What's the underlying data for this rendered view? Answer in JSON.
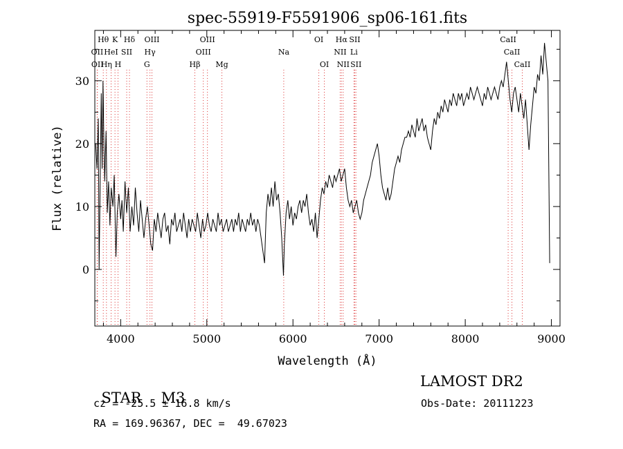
{
  "chart_data": {
    "type": "line",
    "title": "spec-55919-F5591906_sp06-161.fits",
    "xlabel": "Wavelength (Å)",
    "ylabel": "Flux (relative)",
    "xlim": [
      3700,
      9100
    ],
    "ylim": [
      -9,
      38
    ],
    "x_ticks": [
      4000,
      5000,
      6000,
      7000,
      8000,
      9000
    ],
    "y_ticks": [
      0,
      10,
      20,
      30
    ],
    "grid": false,
    "series": [
      {
        "points": [
          [
            3710,
            20
          ],
          [
            3725,
            16
          ],
          [
            3740,
            24
          ],
          [
            3750,
            0
          ],
          [
            3760,
            12
          ],
          [
            3775,
            28
          ],
          [
            3785,
            16
          ],
          [
            3795,
            30
          ],
          [
            3805,
            20
          ],
          [
            3815,
            14
          ],
          [
            3830,
            22
          ],
          [
            3845,
            9
          ],
          [
            3860,
            14
          ],
          [
            3875,
            7
          ],
          [
            3890,
            13
          ],
          [
            3910,
            10
          ],
          [
            3925,
            15
          ],
          [
            3945,
            2
          ],
          [
            3960,
            9
          ],
          [
            3980,
            12
          ],
          [
            4000,
            8
          ],
          [
            4015,
            11
          ],
          [
            4030,
            6
          ],
          [
            4050,
            14
          ],
          [
            4070,
            9
          ],
          [
            4090,
            13
          ],
          [
            4110,
            6
          ],
          [
            4130,
            10
          ],
          [
            4150,
            7
          ],
          [
            4170,
            13
          ],
          [
            4190,
            9
          ],
          [
            4210,
            6
          ],
          [
            4230,
            11
          ],
          [
            4250,
            8
          ],
          [
            4270,
            5
          ],
          [
            4290,
            8
          ],
          [
            4310,
            10
          ],
          [
            4330,
            7
          ],
          [
            4350,
            4
          ],
          [
            4370,
            3
          ],
          [
            4390,
            8
          ],
          [
            4410,
            6
          ],
          [
            4430,
            9
          ],
          [
            4450,
            7
          ],
          [
            4470,
            5
          ],
          [
            4490,
            8
          ],
          [
            4510,
            9
          ],
          [
            4530,
            6
          ],
          [
            4550,
            7
          ],
          [
            4570,
            4
          ],
          [
            4590,
            8
          ],
          [
            4610,
            7
          ],
          [
            4630,
            9
          ],
          [
            4650,
            6
          ],
          [
            4670,
            7
          ],
          [
            4690,
            8
          ],
          [
            4710,
            6
          ],
          [
            4730,
            9
          ],
          [
            4750,
            7
          ],
          [
            4770,
            5
          ],
          [
            4790,
            8
          ],
          [
            4810,
            6
          ],
          [
            4830,
            8
          ],
          [
            4850,
            7
          ],
          [
            4870,
            6
          ],
          [
            4890,
            9
          ],
          [
            4910,
            7
          ],
          [
            4930,
            5
          ],
          [
            4950,
            8
          ],
          [
            4970,
            6
          ],
          [
            4990,
            7
          ],
          [
            5010,
            9
          ],
          [
            5030,
            7
          ],
          [
            5050,
            6
          ],
          [
            5070,
            8
          ],
          [
            5090,
            7
          ],
          [
            5110,
            6
          ],
          [
            5130,
            9
          ],
          [
            5150,
            7
          ],
          [
            5170,
            8
          ],
          [
            5190,
            6
          ],
          [
            5210,
            7
          ],
          [
            5230,
            8
          ],
          [
            5250,
            6
          ],
          [
            5270,
            7
          ],
          [
            5290,
            8
          ],
          [
            5310,
            6
          ],
          [
            5330,
            8
          ],
          [
            5350,
            7
          ],
          [
            5370,
            9
          ],
          [
            5390,
            6
          ],
          [
            5410,
            8
          ],
          [
            5430,
            7
          ],
          [
            5450,
            6
          ],
          [
            5470,
            8
          ],
          [
            5490,
            7
          ],
          [
            5510,
            9
          ],
          [
            5530,
            7
          ],
          [
            5550,
            8
          ],
          [
            5570,
            6
          ],
          [
            5590,
            8
          ],
          [
            5610,
            7
          ],
          [
            5630,
            5
          ],
          [
            5650,
            3
          ],
          [
            5670,
            1
          ],
          [
            5690,
            9
          ],
          [
            5710,
            12
          ],
          [
            5730,
            10
          ],
          [
            5750,
            13
          ],
          [
            5770,
            10
          ],
          [
            5790,
            14
          ],
          [
            5810,
            11
          ],
          [
            5830,
            12
          ],
          [
            5850,
            9
          ],
          [
            5870,
            5
          ],
          [
            5890,
            -1
          ],
          [
            5900,
            4
          ],
          [
            5920,
            9
          ],
          [
            5940,
            11
          ],
          [
            5960,
            8
          ],
          [
            5980,
            10
          ],
          [
            6000,
            7
          ],
          [
            6020,
            9
          ],
          [
            6040,
            8
          ],
          [
            6060,
            10
          ],
          [
            6080,
            11
          ],
          [
            6100,
            9
          ],
          [
            6120,
            11
          ],
          [
            6140,
            10
          ],
          [
            6160,
            12
          ],
          [
            6180,
            9
          ],
          [
            6200,
            7
          ],
          [
            6220,
            8
          ],
          [
            6240,
            6
          ],
          [
            6260,
            9
          ],
          [
            6280,
            5
          ],
          [
            6300,
            8
          ],
          [
            6320,
            11
          ],
          [
            6340,
            13
          ],
          [
            6360,
            12
          ],
          [
            6380,
            14
          ],
          [
            6400,
            13
          ],
          [
            6420,
            15
          ],
          [
            6440,
            14
          ],
          [
            6460,
            13
          ],
          [
            6480,
            15
          ],
          [
            6500,
            14
          ],
          [
            6520,
            15
          ],
          [
            6540,
            16
          ],
          [
            6560,
            14
          ],
          [
            6580,
            15
          ],
          [
            6600,
            16
          ],
          [
            6620,
            13
          ],
          [
            6640,
            11
          ],
          [
            6660,
            10
          ],
          [
            6680,
            11
          ],
          [
            6700,
            9
          ],
          [
            6720,
            10
          ],
          [
            6740,
            11
          ],
          [
            6760,
            9
          ],
          [
            6780,
            8
          ],
          [
            6800,
            9
          ],
          [
            6820,
            11
          ],
          [
            6840,
            12
          ],
          [
            6860,
            13
          ],
          [
            6880,
            14
          ],
          [
            6900,
            15
          ],
          [
            6920,
            17
          ],
          [
            6940,
            18
          ],
          [
            6960,
            19
          ],
          [
            6980,
            20
          ],
          [
            7000,
            18
          ],
          [
            7020,
            15
          ],
          [
            7040,
            13
          ],
          [
            7060,
            12
          ],
          [
            7080,
            11
          ],
          [
            7100,
            13
          ],
          [
            7120,
            11
          ],
          [
            7140,
            12
          ],
          [
            7160,
            14
          ],
          [
            7180,
            16
          ],
          [
            7200,
            17
          ],
          [
            7220,
            18
          ],
          [
            7240,
            17
          ],
          [
            7260,
            19
          ],
          [
            7280,
            20
          ],
          [
            7300,
            21
          ],
          [
            7320,
            21
          ],
          [
            7340,
            22
          ],
          [
            7360,
            21
          ],
          [
            7380,
            23
          ],
          [
            7400,
            22
          ],
          [
            7420,
            21
          ],
          [
            7440,
            24
          ],
          [
            7460,
            22
          ],
          [
            7480,
            23
          ],
          [
            7500,
            24
          ],
          [
            7520,
            22
          ],
          [
            7540,
            23
          ],
          [
            7560,
            21
          ],
          [
            7580,
            20
          ],
          [
            7600,
            19
          ],
          [
            7620,
            22
          ],
          [
            7640,
            24
          ],
          [
            7660,
            23
          ],
          [
            7680,
            25
          ],
          [
            7700,
            24
          ],
          [
            7720,
            26
          ],
          [
            7740,
            25
          ],
          [
            7760,
            27
          ],
          [
            7780,
            26
          ],
          [
            7800,
            25
          ],
          [
            7820,
            27
          ],
          [
            7840,
            26
          ],
          [
            7860,
            28
          ],
          [
            7880,
            27
          ],
          [
            7900,
            26
          ],
          [
            7920,
            28
          ],
          [
            7940,
            27
          ],
          [
            7960,
            28
          ],
          [
            7980,
            26
          ],
          [
            8000,
            27
          ],
          [
            8020,
            28
          ],
          [
            8040,
            27
          ],
          [
            8060,
            29
          ],
          [
            8080,
            28
          ],
          [
            8100,
            27
          ],
          [
            8120,
            28
          ],
          [
            8140,
            29
          ],
          [
            8160,
            28
          ],
          [
            8180,
            27
          ],
          [
            8200,
            26
          ],
          [
            8220,
            28
          ],
          [
            8240,
            27
          ],
          [
            8260,
            29
          ],
          [
            8280,
            28
          ],
          [
            8300,
            27
          ],
          [
            8320,
            28
          ],
          [
            8340,
            29
          ],
          [
            8360,
            28
          ],
          [
            8380,
            27
          ],
          [
            8400,
            29
          ],
          [
            8420,
            30
          ],
          [
            8440,
            29
          ],
          [
            8460,
            31
          ],
          [
            8480,
            33
          ],
          [
            8500,
            30
          ],
          [
            8520,
            27
          ],
          [
            8540,
            25
          ],
          [
            8560,
            28
          ],
          [
            8580,
            29
          ],
          [
            8600,
            27
          ],
          [
            8620,
            25
          ],
          [
            8640,
            28
          ],
          [
            8660,
            26
          ],
          [
            8680,
            24
          ],
          [
            8700,
            27
          ],
          [
            8720,
            23
          ],
          [
            8740,
            19
          ],
          [
            8760,
            23
          ],
          [
            8780,
            26
          ],
          [
            8800,
            29
          ],
          [
            8820,
            28
          ],
          [
            8840,
            31
          ],
          [
            8860,
            30
          ],
          [
            8880,
            34
          ],
          [
            8900,
            31
          ],
          [
            8920,
            36
          ],
          [
            8940,
            33
          ],
          [
            8960,
            30
          ],
          [
            8980,
            1
          ]
        ],
        "color": "#000000"
      }
    ],
    "lines": [
      {
        "label": "Hθ",
        "x": 3798,
        "row": 0
      },
      {
        "label": "OII",
        "x": 3727,
        "row": 1
      },
      {
        "label": "OII",
        "x": 3730,
        "row": 2
      },
      {
        "label": "K",
        "x": 3934,
        "row": 0
      },
      {
        "label": "HeI",
        "x": 3889,
        "row": 1
      },
      {
        "label": "Hη",
        "x": 3835,
        "row": 2
      },
      {
        "label": "SII",
        "x": 4070,
        "row": 1
      },
      {
        "label": "H",
        "x": 3969,
        "row": 2
      },
      {
        "label": "Hδ",
        "x": 4102,
        "row": 0
      },
      {
        "label": "OIII",
        "x": 4363,
        "row": 0
      },
      {
        "label": "Hγ",
        "x": 4340,
        "row": 1
      },
      {
        "label": "G",
        "x": 4305,
        "row": 2
      },
      {
        "label": "OIII",
        "x": 5007,
        "row": 0
      },
      {
        "label": "OIII",
        "x": 4959,
        "row": 1
      },
      {
        "label": "Hβ",
        "x": 4861,
        "row": 2
      },
      {
        "label": "Mg",
        "x": 5175,
        "row": 2
      },
      {
        "label": "Na",
        "x": 5893,
        "row": 1
      },
      {
        "label": "OI",
        "x": 6300,
        "row": 0
      },
      {
        "label": "OI",
        "x": 6364,
        "row": 2
      },
      {
        "label": "Hα",
        "x": 6563,
        "row": 0
      },
      {
        "label": "SII",
        "x": 6717,
        "row": 0
      },
      {
        "label": "NII",
        "x": 6548,
        "row": 1
      },
      {
        "label": "Li",
        "x": 6708,
        "row": 1
      },
      {
        "label": "NII",
        "x": 6583,
        "row": 2
      },
      {
        "label": "SII",
        "x": 6731,
        "row": 2
      },
      {
        "label": "CaII",
        "x": 8498,
        "row": 0
      },
      {
        "label": "CaII",
        "x": 8542,
        "row": 1
      },
      {
        "label": "CaII",
        "x": 8662,
        "row": 2
      }
    ]
  },
  "info": {
    "object_class": "STAR",
    "subclass": "M3",
    "survey": "LAMOST DR2",
    "redshift": "cz = -25.5 ± 16.8 km/s",
    "obs_date": "Obs-Date: 20111223",
    "coords": "RA = 169.96367, DEC =  49.67023"
  }
}
